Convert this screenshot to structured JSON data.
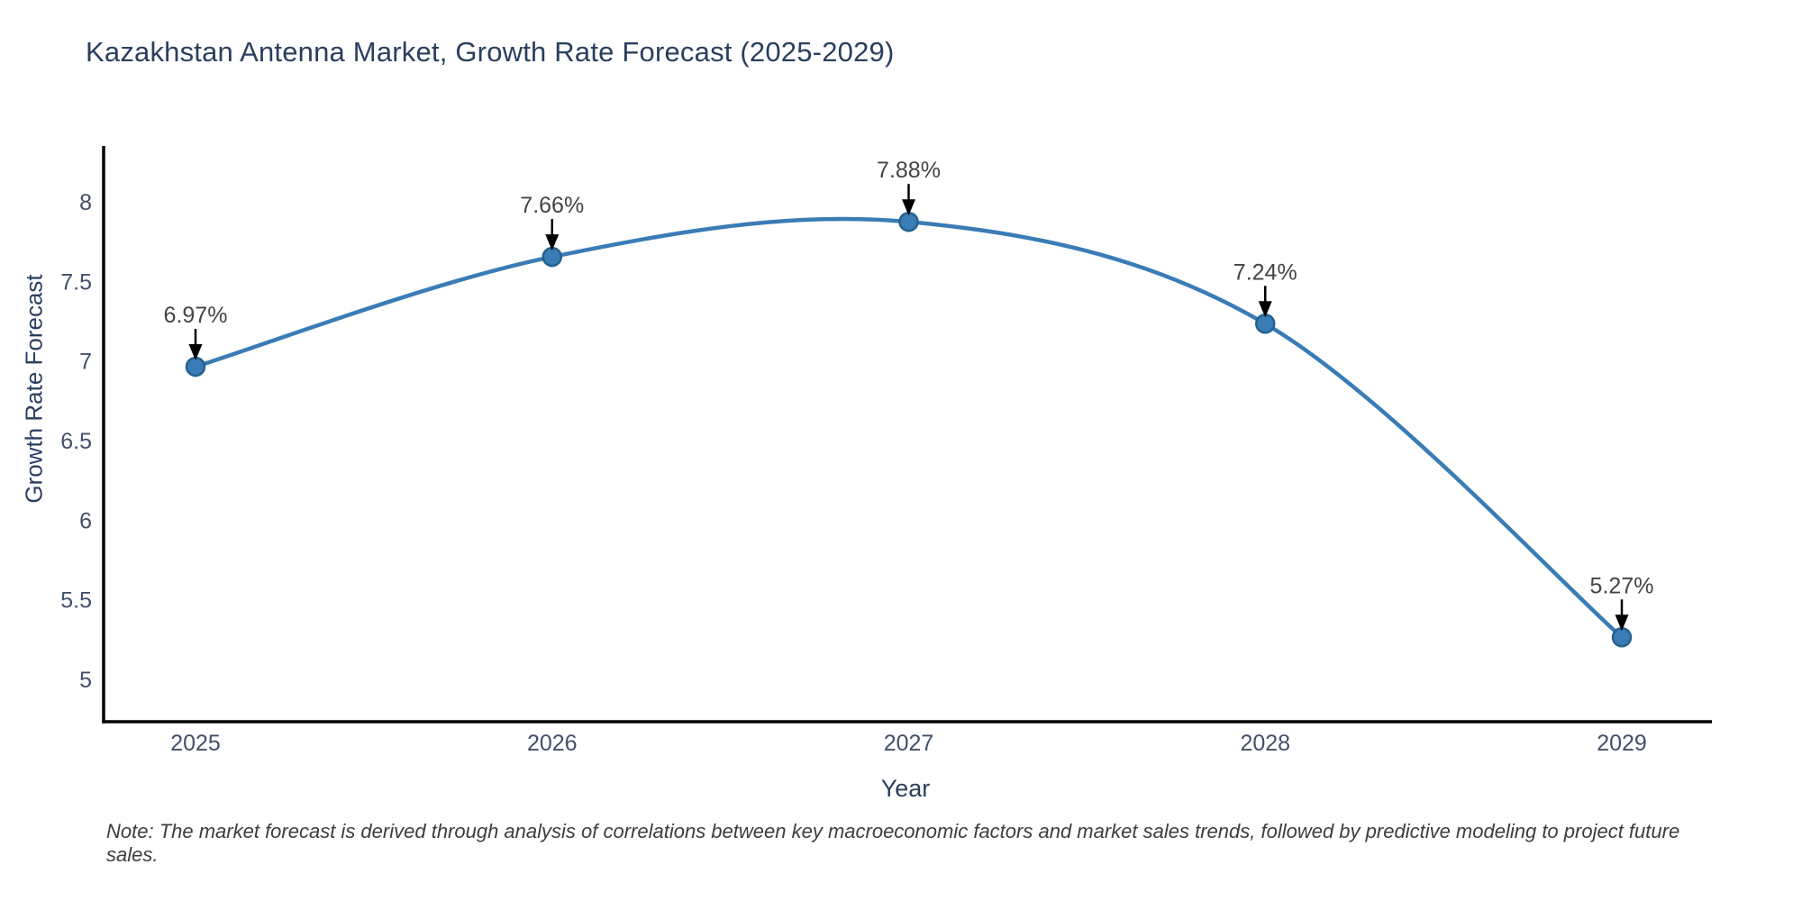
{
  "header": {
    "title": "Kazakhstan Antenna Market, Growth Rate Forecast (2025-2029)"
  },
  "chart_data": {
    "type": "line",
    "line_shape": "spline",
    "title": "Kazakhstan Antenna Market, Growth Rate Forecast (2025-2029)",
    "xlabel": "Year",
    "ylabel": "Growth Rate Forecast",
    "x": [
      2025,
      2026,
      2027,
      2028,
      2029
    ],
    "y": [
      6.97,
      7.66,
      7.88,
      7.24,
      5.27
    ],
    "point_labels": [
      "6.97%",
      "7.66%",
      "7.88%",
      "7.24%",
      "5.27%"
    ],
    "x_ticks": [
      "2025",
      "2026",
      "2027",
      "2028",
      "2029"
    ],
    "y_ticks": [
      "8",
      "7.5",
      "7",
      "6.5",
      "6",
      "5.5",
      "5"
    ],
    "ylim": [
      4.74,
      8.36
    ],
    "grid": false,
    "legend": "none",
    "colors": {
      "line": "#3a7cb5",
      "marker_fill": "#3a7cb5",
      "marker_stroke": "#24618f",
      "axis": "#000000",
      "title_text": "#2a3f5f",
      "tick_text": "#42506b",
      "annotation_text": "#444444",
      "arrow": "#000000"
    }
  },
  "footer": {
    "note": "Note: The market forecast is derived through analysis of correlations between key macroeconomic factors and market sales trends, followed by predictive modeling to project future sales."
  }
}
